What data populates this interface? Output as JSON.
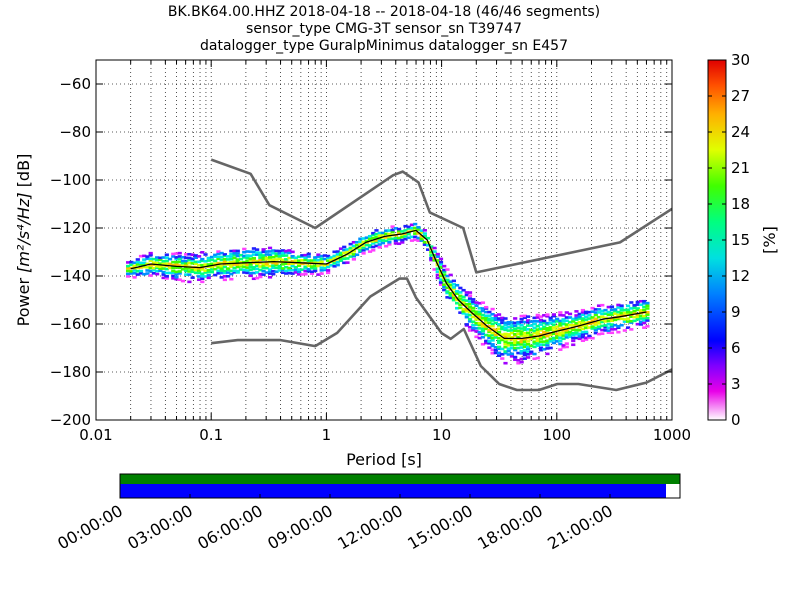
{
  "chart_data": {
    "type": "heatmap",
    "title_lines": [
      "BK.BK64.00.HHZ   2018-04-18 -- 2018-04-18  (46/46 segments)",
      "sensor_type CMG-3T sensor_sn T39747",
      "datalogger_type GuralpMinimus datalogger_sn E457"
    ],
    "xlabel": "Period [s]",
    "ylabel_prefix": "Power ",
    "ylabel_units": "[m²/s⁴/Hz]",
    "ylabel_suffix": " [dB]",
    "xscale": "log",
    "xlim": [
      0.01,
      1000
    ],
    "ylim": [
      -200,
      -50
    ],
    "x_ticks": [
      0.01,
      0.1,
      1,
      10,
      100,
      1000
    ],
    "x_tick_labels": [
      "0.01",
      "0.1",
      "1",
      "10",
      "100",
      "1000"
    ],
    "y_ticks": [
      -200,
      -180,
      -160,
      -140,
      -120,
      -100,
      -80,
      -60
    ],
    "y_tick_labels": [
      "−200",
      "−180",
      "−160",
      "−140",
      "−120",
      "−100",
      "−80",
      "−60"
    ],
    "grid": true,
    "colorbar": {
      "label": "[%]",
      "range": [
        0,
        30
      ],
      "ticks": [
        0,
        3,
        6,
        9,
        12,
        15,
        18,
        21,
        24,
        27,
        30
      ],
      "tick_labels": [
        "0",
        "3",
        "6",
        "9",
        "12",
        "15",
        "18",
        "21",
        "24",
        "27",
        "30"
      ]
    },
    "noise_model_high": {
      "period": [
        0.1,
        0.22,
        0.32,
        0.8,
        3.8,
        4.6,
        6.3,
        7.9,
        15.4,
        20,
        354,
        1000
      ],
      "power": [
        -91.5,
        -97.4,
        -110.5,
        -120,
        -98,
        -96.5,
        -101,
        -113.5,
        -120,
        -138.5,
        -126,
        -112
      ]
    },
    "noise_model_low": {
      "period": [
        0.1,
        0.17,
        0.4,
        0.8,
        1.24,
        2.4,
        4.3,
        5,
        6,
        10,
        12,
        15.6,
        21.9,
        31.6,
        45,
        70,
        101,
        154,
        328,
        600,
        1000
      ],
      "power": [
        -168,
        -166.7,
        -166.7,
        -169.2,
        -163.7,
        -148.6,
        -141.1,
        -141.1,
        -149,
        -163.8,
        -166.2,
        -162.1,
        -177.5,
        -185,
        -187.5,
        -187.5,
        -185,
        -185,
        -187.5,
        -184.4,
        -178.9
      ]
    },
    "mode_curve": {
      "period": [
        0.02,
        0.03,
        0.05,
        0.08,
        0.12,
        0.2,
        0.35,
        0.6,
        1.0,
        1.5,
        2.2,
        3.2,
        4.5,
        6.0,
        7.5,
        9.0,
        11,
        14,
        18,
        25,
        35,
        50,
        70,
        100,
        150,
        250,
        350,
        600
      ],
      "power": [
        -137,
        -135,
        -136,
        -136.5,
        -135,
        -134.5,
        -134,
        -134.5,
        -135,
        -131,
        -126,
        -123.5,
        -122.5,
        -121,
        -125,
        -134,
        -143,
        -150,
        -155,
        -161,
        -166,
        -166,
        -165,
        -163,
        -161,
        -158,
        -157,
        -155
      ]
    },
    "spread_curve": {
      "period": [
        0.02,
        0.03,
        0.05,
        0.08,
        0.12,
        0.2,
        0.35,
        0.6,
        1.0,
        1.5,
        2.2,
        3.2,
        4.5,
        6.0,
        7.5,
        9.0,
        11,
        14,
        18,
        25,
        35,
        50,
        70,
        100,
        150,
        250,
        350,
        600
      ],
      "half_width": [
        2.5,
        4,
        4.5,
        5,
        5.5,
        5.5,
        5.5,
        4,
        3,
        3,
        3,
        3,
        2.5,
        2.5,
        3,
        4,
        5,
        6,
        7,
        8,
        9,
        9,
        8,
        7,
        6,
        5,
        5,
        5
      ]
    },
    "time_axis": {
      "tick_labels": [
        "00:00:00",
        "03:00:00",
        "06:00:00",
        "09:00:00",
        "12:00:00",
        "15:00:00",
        "18:00:00",
        "21:00:00"
      ],
      "range_hours": [
        0,
        24
      ],
      "data_coverage_hours": [
        0,
        24
      ],
      "gap_coverage_hours": [
        0,
        23.4
      ],
      "data_color": "#008000",
      "gap_color": "#0000ff"
    },
    "colors": {
      "noise_model": "#666666",
      "mode_curve": "#000000"
    }
  }
}
